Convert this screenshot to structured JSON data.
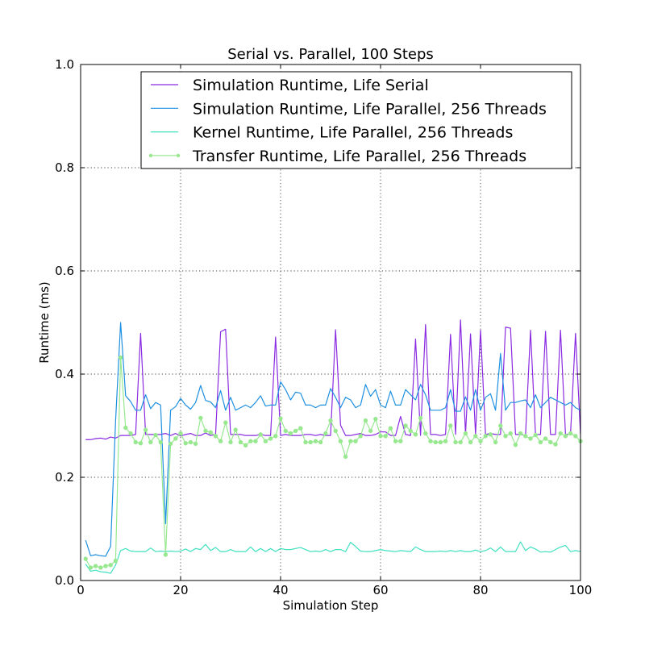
{
  "chart_data": {
    "type": "line",
    "title": "Serial vs. Parallel, 100 Steps",
    "xlabel": "Simulation Step",
    "ylabel": "Runtime (ms)",
    "xlim": [
      0,
      100
    ],
    "ylim": [
      0.0,
      1.0
    ],
    "xticks": [
      "0",
      "20",
      "40",
      "60",
      "80",
      "100"
    ],
    "yticks": [
      "0.0",
      "0.2",
      "0.4",
      "0.6",
      "0.8",
      "1.0"
    ],
    "grid": true,
    "legend_position": "top-center",
    "x": [
      1,
      2,
      3,
      4,
      5,
      6,
      7,
      8,
      9,
      10,
      11,
      12,
      13,
      14,
      15,
      16,
      17,
      18,
      19,
      20,
      21,
      22,
      23,
      24,
      25,
      26,
      27,
      28,
      29,
      30,
      31,
      32,
      33,
      34,
      35,
      36,
      37,
      38,
      39,
      40,
      41,
      42,
      43,
      44,
      45,
      46,
      47,
      48,
      49,
      50,
      51,
      52,
      53,
      54,
      55,
      56,
      57,
      58,
      59,
      60,
      61,
      62,
      63,
      64,
      65,
      66,
      67,
      68,
      69,
      70,
      71,
      72,
      73,
      74,
      75,
      76,
      77,
      78,
      79,
      80,
      81,
      82,
      83,
      84,
      85,
      86,
      87,
      88,
      89,
      90,
      91,
      92,
      93,
      94,
      95,
      96,
      97,
      98,
      99,
      100
    ],
    "series": [
      {
        "name": "Simulation Runtime, Life Serial",
        "color": "#8a2be2",
        "marker": false,
        "values": [
          0.273,
          0.273,
          0.275,
          0.276,
          0.274,
          0.278,
          0.276,
          0.281,
          0.281,
          0.281,
          0.283,
          0.479,
          0.283,
          0.283,
          0.283,
          0.283,
          0.285,
          0.281,
          0.285,
          0.28,
          0.283,
          0.285,
          0.281,
          0.281,
          0.286,
          0.281,
          0.283,
          0.482,
          0.487,
          0.283,
          0.283,
          0.283,
          0.281,
          0.281,
          0.281,
          0.283,
          0.281,
          0.281,
          0.472,
          0.281,
          0.283,
          0.281,
          0.281,
          0.281,
          0.283,
          0.283,
          0.281,
          0.283,
          0.281,
          0.281,
          0.486,
          0.301,
          0.281,
          0.281,
          0.283,
          0.285,
          0.281,
          0.281,
          0.283,
          0.288,
          0.288,
          0.281,
          0.281,
          0.318,
          0.283,
          0.281,
          0.468,
          0.281,
          0.496,
          0.283,
          0.283,
          0.281,
          0.283,
          0.477,
          0.283,
          0.505,
          0.283,
          0.478,
          0.283,
          0.485,
          0.283,
          0.285,
          0.283,
          0.283,
          0.491,
          0.489,
          0.283,
          0.283,
          0.281,
          0.485,
          0.283,
          0.283,
          0.483,
          0.283,
          0.283,
          0.485,
          0.283,
          0.283,
          0.479,
          0.283
        ]
      },
      {
        "name": "Simulation Runtime, Life Parallel, 256 Threads",
        "color": "#1e90e0",
        "marker": false,
        "values": [
          0.078,
          0.048,
          0.05,
          0.048,
          0.047,
          0.066,
          0.31,
          0.5,
          0.358,
          0.347,
          0.33,
          0.33,
          0.36,
          0.333,
          0.345,
          0.34,
          0.11,
          0.33,
          0.337,
          0.353,
          0.34,
          0.332,
          0.345,
          0.378,
          0.349,
          0.346,
          0.335,
          0.368,
          0.33,
          0.355,
          0.33,
          0.335,
          0.34,
          0.335,
          0.345,
          0.358,
          0.338,
          0.34,
          0.34,
          0.385,
          0.37,
          0.35,
          0.365,
          0.363,
          0.34,
          0.34,
          0.335,
          0.34,
          0.34,
          0.372,
          0.355,
          0.335,
          0.355,
          0.35,
          0.335,
          0.34,
          0.38,
          0.357,
          0.37,
          0.34,
          0.335,
          0.367,
          0.34,
          0.34,
          0.37,
          0.36,
          0.35,
          0.38,
          0.36,
          0.33,
          0.33,
          0.33,
          0.335,
          0.37,
          0.328,
          0.328,
          0.356,
          0.33,
          0.37,
          0.33,
          0.355,
          0.362,
          0.33,
          0.44,
          0.33,
          0.345,
          0.345,
          0.348,
          0.35,
          0.335,
          0.36,
          0.335,
          0.345,
          0.355,
          0.35,
          0.345,
          0.34,
          0.345,
          0.335,
          0.33
        ]
      },
      {
        "name": "Kernel Runtime, Life Parallel, 256 Threads",
        "color": "#40e0c0",
        "marker": false,
        "values": [
          0.032,
          0.018,
          0.02,
          0.017,
          0.016,
          0.014,
          0.03,
          0.058,
          0.062,
          0.057,
          0.056,
          0.056,
          0.056,
          0.063,
          0.056,
          0.057,
          0.056,
          0.057,
          0.056,
          0.057,
          0.061,
          0.056,
          0.062,
          0.06,
          0.07,
          0.058,
          0.064,
          0.056,
          0.056,
          0.06,
          0.056,
          0.056,
          0.056,
          0.065,
          0.056,
          0.062,
          0.056,
          0.062,
          0.056,
          0.062,
          0.06,
          0.06,
          0.062,
          0.064,
          0.06,
          0.056,
          0.057,
          0.056,
          0.06,
          0.056,
          0.06,
          0.06,
          0.056,
          0.074,
          0.066,
          0.057,
          0.056,
          0.056,
          0.058,
          0.06,
          0.058,
          0.057,
          0.056,
          0.058,
          0.057,
          0.056,
          0.065,
          0.06,
          0.056,
          0.056,
          0.056,
          0.057,
          0.056,
          0.058,
          0.056,
          0.058,
          0.056,
          0.056,
          0.059,
          0.056,
          0.058,
          0.063,
          0.056,
          0.065,
          0.056,
          0.056,
          0.056,
          0.075,
          0.058,
          0.065,
          0.061,
          0.055,
          0.056,
          0.055,
          0.06,
          0.065,
          0.068,
          0.056,
          0.058,
          0.056
        ]
      },
      {
        "name": "Transfer Runtime, Life Parallel, 256 Threads",
        "color": "#98e890",
        "marker": true,
        "values": [
          0.042,
          0.025,
          0.028,
          0.025,
          0.028,
          0.03,
          0.038,
          0.432,
          0.296,
          0.285,
          0.268,
          0.266,
          0.292,
          0.268,
          0.282,
          0.268,
          0.05,
          0.265,
          0.275,
          0.285,
          0.266,
          0.268,
          0.265,
          0.315,
          0.29,
          0.287,
          0.28,
          0.27,
          0.306,
          0.268,
          0.292,
          0.268,
          0.262,
          0.27,
          0.27,
          0.283,
          0.27,
          0.275,
          0.28,
          0.314,
          0.29,
          0.285,
          0.29,
          0.295,
          0.268,
          0.268,
          0.27,
          0.268,
          0.285,
          0.31,
          0.29,
          0.27,
          0.24,
          0.27,
          0.27,
          0.28,
          0.31,
          0.29,
          0.313,
          0.28,
          0.28,
          0.295,
          0.27,
          0.27,
          0.3,
          0.29,
          0.283,
          0.315,
          0.285,
          0.27,
          0.268,
          0.268,
          0.27,
          0.3,
          0.268,
          0.268,
          0.285,
          0.268,
          0.28,
          0.27,
          0.28,
          0.283,
          0.268,
          0.3,
          0.28,
          0.285,
          0.263,
          0.285,
          0.28,
          0.275,
          0.282,
          0.268,
          0.275,
          0.268,
          0.264,
          0.285,
          0.28,
          0.285,
          0.28,
          0.27
        ]
      }
    ]
  }
}
